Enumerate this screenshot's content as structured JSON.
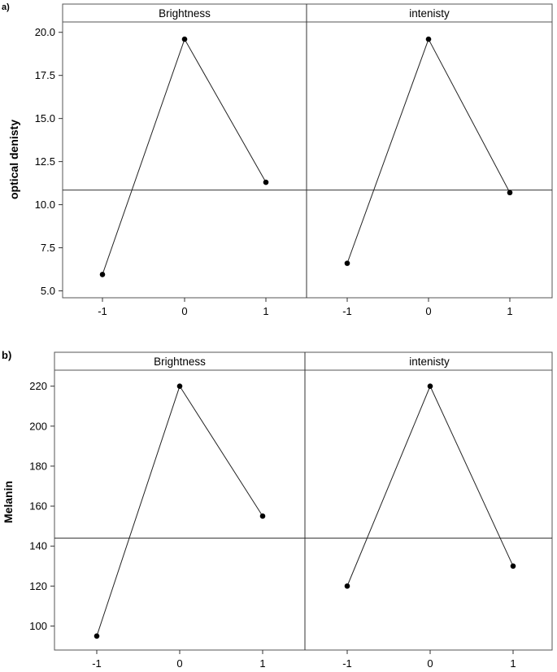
{
  "chart_data": [
    {
      "panel_label": "a)",
      "type": "line",
      "ylabel": "optical denisty",
      "ylim": [
        4.6,
        20.6
      ],
      "yticks": [
        "5.0",
        "7.5",
        "10.0",
        "12.5",
        "15.0",
        "17.5",
        "20.0"
      ],
      "xticks": [
        "-1",
        "0",
        "1"
      ],
      "reference_line": 10.85,
      "grid": false,
      "facets": [
        {
          "name": "Brightness",
          "x": [
            -1,
            0,
            1
          ],
          "values": [
            5.95,
            19.6,
            11.3
          ]
        },
        {
          "name": "intenisty",
          "x": [
            -1,
            0,
            1
          ],
          "values": [
            6.6,
            19.6,
            10.7
          ]
        }
      ]
    },
    {
      "panel_label": "b)",
      "type": "line",
      "ylabel": "Melanin",
      "ylim": [
        88,
        228
      ],
      "yticks": [
        "100",
        "120",
        "140",
        "160",
        "180",
        "200",
        "220"
      ],
      "xticks": [
        "-1",
        "0",
        "1"
      ],
      "reference_line": 144,
      "grid": false,
      "facets": [
        {
          "name": "Brightness",
          "x": [
            -1,
            0,
            1
          ],
          "values": [
            95,
            220,
            155
          ]
        },
        {
          "name": "intenisty",
          "x": [
            -1,
            0,
            1
          ],
          "values": [
            120,
            220,
            130
          ]
        }
      ]
    }
  ]
}
